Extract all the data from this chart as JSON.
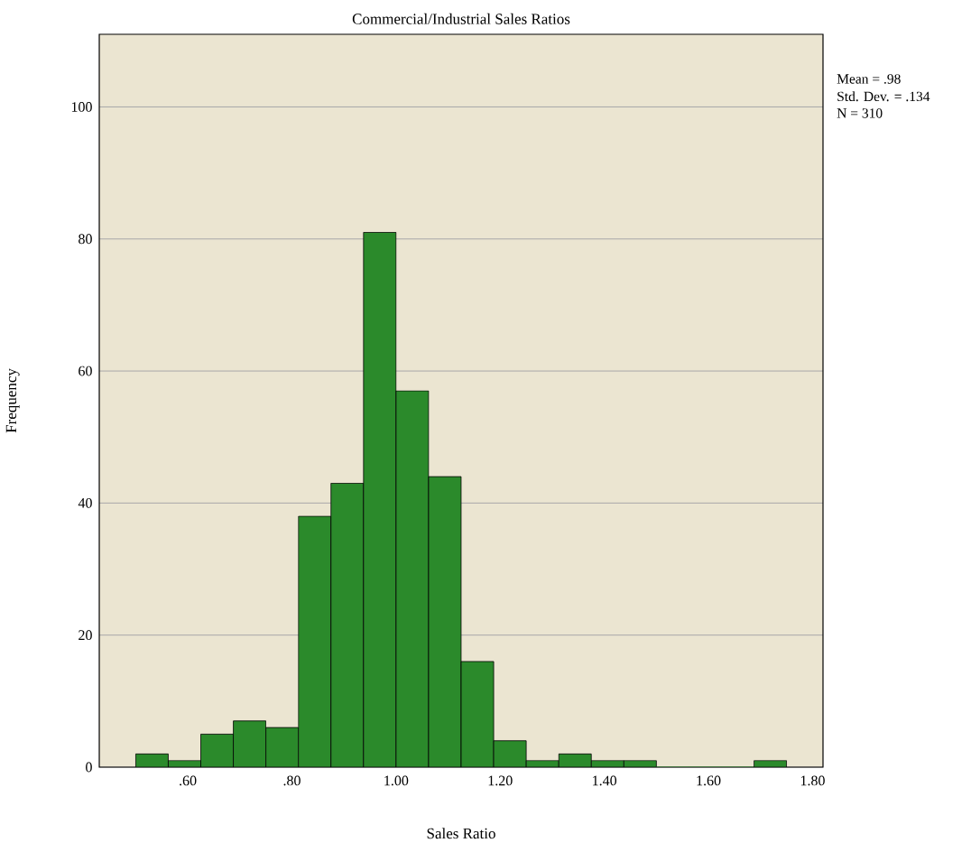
{
  "chart_data": {
    "type": "histogram",
    "title": "Commercial/Industrial Sales Ratios",
    "xlabel": "Sales Ratio",
    "ylabel": "Frequency",
    "bins": [
      0.5,
      0.5625,
      0.625,
      0.6875,
      0.75,
      0.8125,
      0.875,
      0.9375,
      1.0,
      1.0625,
      1.125,
      1.1875,
      1.25,
      1.3125,
      1.375,
      1.4375,
      1.5,
      1.5625,
      1.625,
      1.6875,
      1.75
    ],
    "values": [
      2,
      1,
      5,
      7,
      6,
      38,
      43,
      81,
      57,
      44,
      16,
      4,
      1,
      2,
      1,
      1,
      0,
      0,
      0,
      1
    ],
    "color": "#2b8a2b",
    "xlim": [
      0.43,
      1.82
    ],
    "ylim": [
      0,
      111
    ],
    "xticks": [
      {
        "value": 0.6,
        "label": ".60"
      },
      {
        "value": 0.8,
        "label": ".80"
      },
      {
        "value": 1.0,
        "label": "1.00"
      },
      {
        "value": 1.2,
        "label": "1.20"
      },
      {
        "value": 1.4,
        "label": "1.40"
      },
      {
        "value": 1.6,
        "label": "1.60"
      },
      {
        "value": 1.8,
        "label": "1.80"
      }
    ],
    "yticks": [
      0,
      20,
      40,
      60,
      80,
      100
    ],
    "grid": "y",
    "annotations": [
      "Mean = .98",
      "Std. Dev. = .134",
      "N = 310"
    ]
  }
}
